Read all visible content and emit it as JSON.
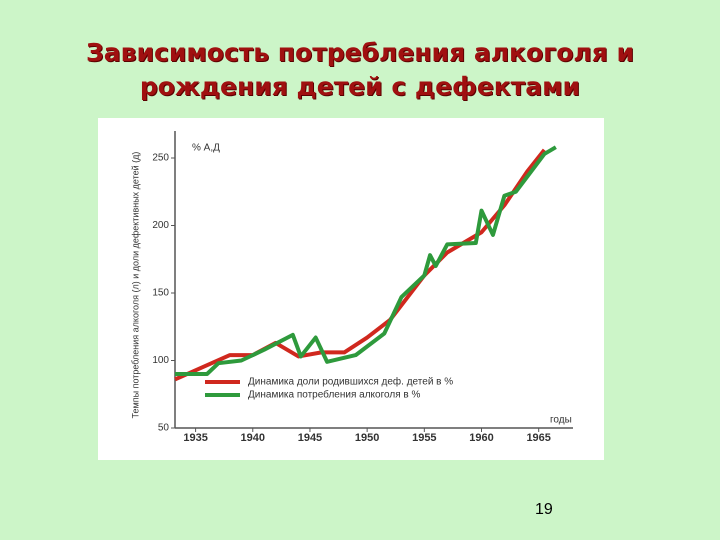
{
  "slide": {
    "title_line1": "Зависимость потребления алкоголя и",
    "title_line2": "рождения детей с дефектами",
    "page_number": "19"
  },
  "chart_data": {
    "type": "line",
    "y_label": "Темпы потребления алкоголя (л) и доли дефективных детей (д)",
    "y_unit_label": "% А,Д",
    "x_label": "годы",
    "xlim": [
      1933.2,
      1968
    ],
    "xticks": [
      1935,
      1940,
      1945,
      1950,
      1955,
      1960,
      1965
    ],
    "ylim": [
      50,
      270
    ],
    "yticks": [
      50,
      100,
      150,
      200,
      250
    ],
    "series": [
      {
        "name": "Динамика доли родившихся деф. детей в %",
        "color": "#d0281e",
        "x": [
          1933.2,
          1938,
          1940,
          1942,
          1944,
          1946,
          1948,
          1950,
          1952,
          1955,
          1957,
          1960,
          1962,
          1964,
          1965.5
        ],
        "values": [
          86,
          104,
          104,
          113,
          103,
          106,
          106,
          117,
          130,
          163,
          180,
          195,
          215,
          240,
          256
        ]
      },
      {
        "name": "Динамика потребления алкоголя в %",
        "color": "#2e9a3c",
        "x": [
          1933.2,
          1936,
          1937,
          1939,
          1941,
          1943.5,
          1944.2,
          1945.5,
          1946.5,
          1949,
          1951.5,
          1953,
          1955,
          1955.5,
          1956,
          1957,
          1959.5,
          1960,
          1961,
          1962,
          1963,
          1965.5,
          1966.5
        ],
        "values": [
          90,
          90,
          98,
          100,
          108,
          119,
          103,
          117,
          99,
          104,
          120,
          147,
          163,
          178,
          170,
          186,
          187,
          211,
          193,
          222,
          225,
          253,
          258
        ]
      }
    ]
  }
}
